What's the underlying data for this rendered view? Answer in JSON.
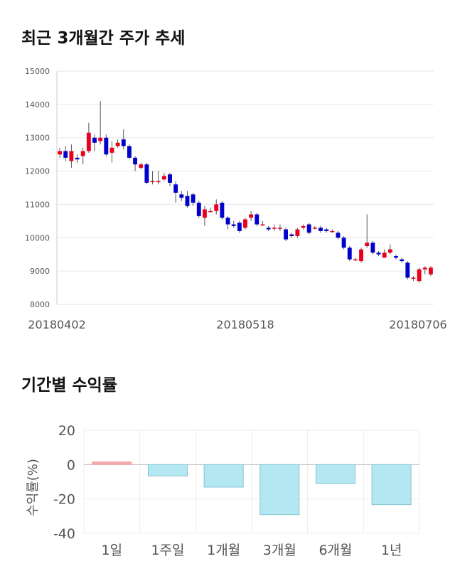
{
  "stock_section": {
    "title": "최근 3개월간 주가 추세"
  },
  "returns_section": {
    "title": "기간별 수익률"
  },
  "chart_data": [
    {
      "type": "candlestick",
      "title": "최근 3개월간 주가 추세",
      "ylim": [
        8000,
        15000
      ],
      "y_ticks": [
        "15000",
        "14000",
        "13000",
        "12000",
        "11000",
        "10000",
        "9000",
        "8000"
      ],
      "x_labels": [
        "20180402",
        "20180518",
        "20180706"
      ],
      "grid": true,
      "colors": {
        "up": "#e8001c",
        "down": "#0000cc"
      },
      "candles": [
        [
          12500,
          12600,
          12400,
          12700
        ],
        [
          12600,
          12400,
          12300,
          12750
        ],
        [
          12300,
          12600,
          12100,
          12800
        ],
        [
          12400,
          12350,
          12250,
          12500
        ],
        [
          12450,
          12600,
          12200,
          12700
        ],
        [
          12600,
          13150,
          12550,
          13450
        ],
        [
          13000,
          12850,
          12600,
          13100
        ],
        [
          12900,
          13000,
          12800,
          14100
        ],
        [
          13000,
          12500,
          12450,
          13100
        ],
        [
          12550,
          12700,
          12250,
          12900
        ],
        [
          12750,
          12850,
          12700,
          12950
        ],
        [
          12950,
          12750,
          12650,
          13250
        ],
        [
          12750,
          12400,
          12350,
          12800
        ],
        [
          12400,
          12200,
          12000,
          12450
        ],
        [
          12100,
          12200,
          12050,
          12250
        ],
        [
          12200,
          11650,
          11600,
          12250
        ],
        [
          11700,
          11700,
          11600,
          12000
        ],
        [
          11700,
          11700,
          11600,
          12000
        ],
        [
          11750,
          11850,
          11700,
          11950
        ],
        [
          11900,
          11650,
          11550,
          11950
        ],
        [
          11600,
          11350,
          11050,
          11700
        ],
        [
          11300,
          11200,
          11100,
          11400
        ],
        [
          11250,
          10950,
          10900,
          11400
        ],
        [
          11300,
          11050,
          10950,
          11350
        ],
        [
          11050,
          10650,
          10600,
          11100
        ],
        [
          10600,
          10850,
          10350,
          10950
        ],
        [
          10800,
          10800,
          10750,
          10900
        ],
        [
          10800,
          11000,
          10700,
          11150
        ],
        [
          11050,
          10600,
          10550,
          11100
        ],
        [
          10600,
          10400,
          10250,
          10650
        ],
        [
          10400,
          10350,
          10300,
          10500
        ],
        [
          10450,
          10200,
          10150,
          10500
        ],
        [
          10300,
          10550,
          10250,
          10600
        ],
        [
          10600,
          10700,
          10500,
          10800
        ],
        [
          10700,
          10400,
          10350,
          10750
        ],
        [
          10400,
          10400,
          10350,
          10500
        ],
        [
          10300,
          10250,
          10200,
          10350
        ],
        [
          10300,
          10300,
          10200,
          10400
        ],
        [
          10300,
          10300,
          10200,
          10400
        ],
        [
          10250,
          9950,
          9900,
          10300
        ],
        [
          10100,
          10050,
          10000,
          10150
        ],
        [
          10050,
          10250,
          10000,
          10300
        ],
        [
          10300,
          10350,
          10250,
          10400
        ],
        [
          10400,
          10150,
          10100,
          10450
        ],
        [
          10300,
          10300,
          10250,
          10350
        ],
        [
          10300,
          10200,
          10150,
          10350
        ],
        [
          10250,
          10200,
          10150,
          10300
        ],
        [
          10200,
          10200,
          10150,
          10250
        ],
        [
          10150,
          10000,
          9950,
          10200
        ],
        [
          10000,
          9700,
          9650,
          10050
        ],
        [
          9700,
          9350,
          9300,
          9750
        ],
        [
          9350,
          9350,
          9300,
          9400
        ],
        [
          9300,
          9650,
          9250,
          9700
        ],
        [
          9750,
          9850,
          9700,
          10700
        ],
        [
          9850,
          9550,
          9500,
          9900
        ],
        [
          9550,
          9500,
          9450,
          9600
        ],
        [
          9400,
          9550,
          9400,
          9650
        ],
        [
          9550,
          9650,
          9500,
          9800
        ],
        [
          9450,
          9400,
          9350,
          9500
        ],
        [
          9350,
          9300,
          9250,
          9400
        ],
        [
          9250,
          8800,
          8750,
          9300
        ],
        [
          8800,
          8800,
          8700,
          8850
        ],
        [
          8700,
          9050,
          8650,
          9100
        ],
        [
          9050,
          9100,
          8900,
          9150
        ],
        [
          8900,
          9100,
          8850,
          9150
        ]
      ]
    },
    {
      "type": "bar",
      "categories": [
        "1일",
        "1주일",
        "1개월",
        "3개월",
        "6개월",
        "1년"
      ],
      "values": [
        1.6,
        -6.6,
        -13.1,
        -29.1,
        -11.0,
        -23.3
      ],
      "ylabel": "수익률(%)",
      "ylim": [
        -40,
        20
      ],
      "y_ticks": [
        "20",
        "0",
        "-20",
        "-40"
      ],
      "colors": {
        "positive": "#f5a9ab",
        "negative": "#b3e8f2",
        "negative_border": "#87c4d4"
      }
    }
  ]
}
